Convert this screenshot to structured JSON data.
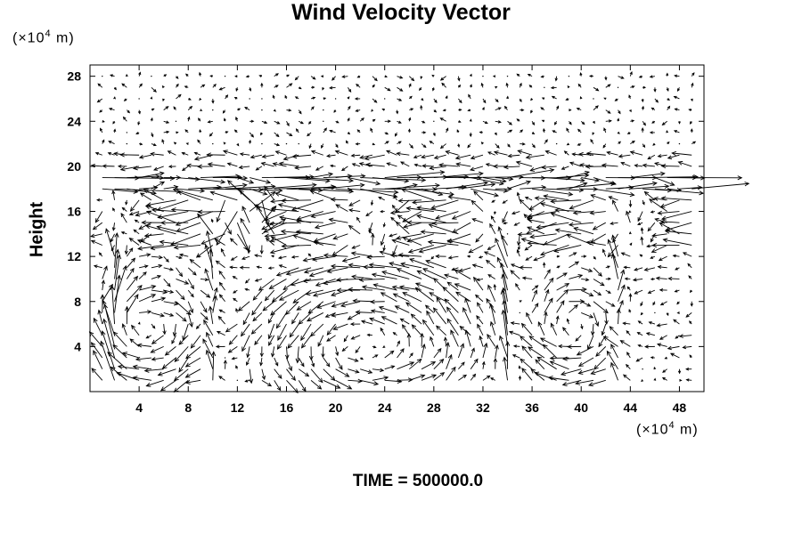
{
  "title": "Wind Velocity Vector",
  "y_unit": {
    "prefix": "(×10",
    "exp": "4",
    "suffix": " m)"
  },
  "x_unit": {
    "prefix": "(×10",
    "exp": "4",
    "suffix": " m)"
  },
  "time_label": "TIME = 500000.0",
  "chart_data": {
    "type": "vector-field",
    "title": "Wind Velocity Vector",
    "xlabel": "",
    "ylabel": "Height",
    "xlim": [
      0,
      50
    ],
    "ylim": [
      0,
      29
    ],
    "x_ticks": [
      4,
      8,
      12,
      16,
      20,
      24,
      28,
      32,
      36,
      40,
      44,
      48
    ],
    "y_ticks": [
      4,
      8,
      12,
      16,
      20,
      24,
      28
    ],
    "grid_x": [
      0,
      50,
      1
    ],
    "grid_y": [
      0,
      29,
      1
    ],
    "jet_heights": [
      18,
      19.5
    ],
    "cells": [
      {
        "x_range": [
          0,
          9
        ],
        "center": [
          5,
          5
        ],
        "direction": "clockwise"
      },
      {
        "x_range": [
          14,
          32
        ],
        "center": [
          23,
          5
        ],
        "direction": "counter-clockwise"
      },
      {
        "x_range": [
          36,
          43
        ],
        "center": [
          39.5,
          5
        ],
        "direction": "clockwise"
      }
    ],
    "updrafts_x": [
      2,
      10,
      34,
      43
    ],
    "colors": {
      "arrow": "#000000",
      "axes": "#000000"
    }
  }
}
